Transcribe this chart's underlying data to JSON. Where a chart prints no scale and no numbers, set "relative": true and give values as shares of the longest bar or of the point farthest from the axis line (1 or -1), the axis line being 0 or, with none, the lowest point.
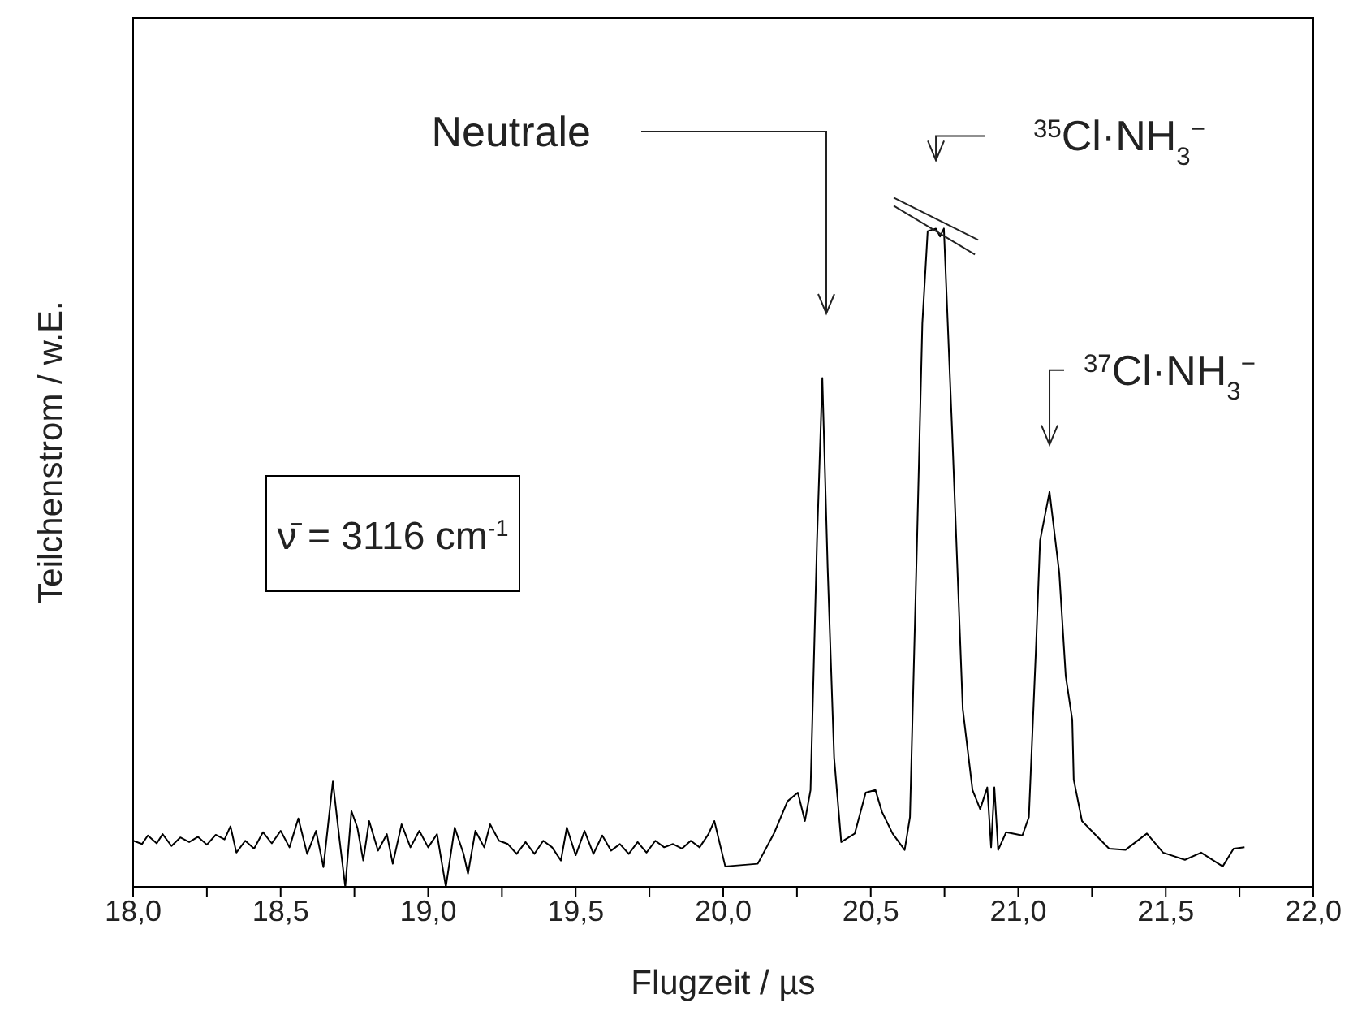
{
  "chart_data": {
    "type": "line",
    "relative": true,
    "xlabel": "Flugzeit / µs",
    "ylabel": "Teilchenstrom / w.E.",
    "color": "#000000",
    "xlim": [
      18,
      22
    ],
    "xticks": [
      {
        "value": 18,
        "label": "18,0"
      },
      {
        "value": 18.25,
        "label": null
      },
      {
        "value": 18.5,
        "label": "18,5"
      },
      {
        "value": 18.75,
        "label": null
      },
      {
        "value": 19,
        "label": "19,0"
      },
      {
        "value": 19.25,
        "label": null
      },
      {
        "value": 19.5,
        "label": "19,5"
      },
      {
        "value": 19.75,
        "label": null
      },
      {
        "value": 20,
        "label": "20,0"
      },
      {
        "value": 20.25,
        "label": null
      },
      {
        "value": 20.5,
        "label": "20,5"
      },
      {
        "value": 20.75,
        "label": null
      },
      {
        "value": 21,
        "label": "21,0"
      },
      {
        "value": 21.25,
        "label": null
      },
      {
        "value": 21.5,
        "label": "21,5"
      },
      {
        "value": 21.75,
        "label": null
      },
      {
        "value": 22,
        "label": "22,0"
      }
    ],
    "x": [
      18.0,
      18.03,
      18.05,
      18.08,
      18.1,
      18.13,
      18.16,
      18.19,
      18.22,
      18.25,
      18.28,
      18.31,
      18.33,
      18.35,
      18.38,
      18.41,
      18.44,
      18.47,
      18.5,
      18.53,
      18.56,
      18.59,
      18.62,
      18.645,
      18.677,
      18.7,
      18.719,
      18.74,
      18.76,
      18.78,
      18.8,
      18.83,
      18.86,
      18.88,
      18.91,
      18.94,
      18.97,
      19.0,
      19.03,
      19.06,
      19.09,
      19.12,
      19.135,
      19.16,
      19.19,
      19.21,
      19.24,
      19.27,
      19.3,
      19.33,
      19.36,
      19.39,
      19.42,
      19.45,
      19.47,
      19.5,
      19.53,
      19.56,
      19.59,
      19.62,
      19.65,
      19.68,
      19.71,
      19.74,
      19.77,
      19.8,
      19.83,
      19.86,
      19.89,
      19.92,
      19.95,
      19.97,
      20.007,
      20.117,
      20.172,
      20.218,
      20.253,
      20.277,
      20.296,
      20.318,
      20.336,
      20.354,
      20.376,
      20.4,
      20.446,
      20.483,
      20.516,
      20.538,
      20.574,
      20.615,
      20.633,
      20.657,
      20.675,
      20.693,
      20.721,
      20.735,
      20.748,
      20.776,
      20.812,
      20.845,
      20.871,
      20.895,
      20.908,
      20.919,
      20.932,
      20.959,
      21.014,
      21.036,
      21.06,
      21.074,
      21.106,
      21.139,
      21.161,
      21.183,
      21.188,
      21.216,
      21.253,
      21.308,
      21.363,
      21.436,
      21.491,
      21.565,
      21.62,
      21.693,
      21.73,
      21.767
    ],
    "values": [
      0.07,
      0.065,
      0.078,
      0.066,
      0.08,
      0.062,
      0.075,
      0.068,
      0.076,
      0.064,
      0.079,
      0.072,
      0.092,
      0.052,
      0.07,
      0.058,
      0.083,
      0.066,
      0.085,
      0.06,
      0.104,
      0.05,
      0.085,
      0.03,
      0.16,
      0.07,
      0.0,
      0.115,
      0.09,
      0.04,
      0.1,
      0.055,
      0.08,
      0.035,
      0.095,
      0.06,
      0.085,
      0.06,
      0.08,
      0.0,
      0.09,
      0.05,
      0.02,
      0.085,
      0.06,
      0.095,
      0.07,
      0.065,
      0.05,
      0.068,
      0.05,
      0.07,
      0.06,
      0.04,
      0.09,
      0.048,
      0.085,
      0.05,
      0.078,
      0.055,
      0.065,
      0.05,
      0.068,
      0.052,
      0.07,
      0.06,
      0.065,
      0.058,
      0.07,
      0.06,
      0.08,
      0.1,
      0.031,
      0.035,
      0.081,
      0.13,
      0.143,
      0.1,
      0.147,
      0.526,
      0.773,
      0.485,
      0.196,
      0.068,
      0.081,
      0.143,
      0.147,
      0.114,
      0.081,
      0.056,
      0.106,
      0.526,
      0.856,
      0.996,
      1.0,
      0.988,
      1.0,
      0.691,
      0.27,
      0.147,
      0.118,
      0.151,
      0.06,
      0.151,
      0.056,
      0.083,
      0.078,
      0.106,
      0.361,
      0.526,
      0.6,
      0.477,
      0.32,
      0.254,
      0.163,
      0.1,
      0.083,
      0.058,
      0.056,
      0.081,
      0.052,
      0.041,
      0.052,
      0.031,
      0.058,
      0.06
    ],
    "annotations": [
      "Neutrale",
      {
        "text": "$^{35}$Cl·NH$_{3}$$^{−}$",
        "x": 20.721,
        "y": 1.0
      },
      {
        "text": "$^{37}$Cl·NH$_{3}$$^{−}$",
        "x": 21.106,
        "y": 0.6
      },
      "ν̄ = 3116 cm$^{-1}$"
    ]
  }
}
